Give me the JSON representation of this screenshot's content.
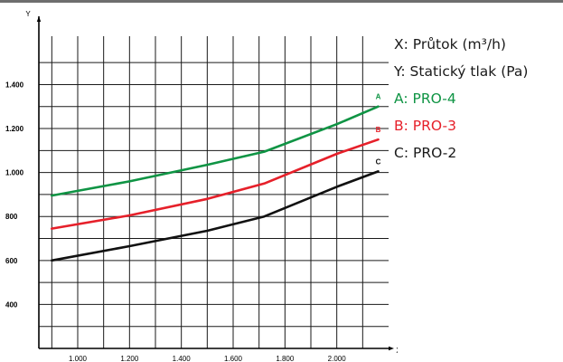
{
  "chart_data": {
    "type": "line",
    "xlabel": "X",
    "ylabel": "Y",
    "xlim": [
      850,
      2200
    ],
    "ylim": [
      200,
      1620
    ],
    "x_ticks": [
      1000,
      1200,
      1400,
      1600,
      1800,
      2000
    ],
    "x_tick_labels": [
      "1.000",
      "1.200",
      "1.400",
      "1.600",
      "1.800",
      "2.000"
    ],
    "y_ticks": [
      400,
      600,
      800,
      1000,
      1200,
      1400
    ],
    "y_tick_labels": [
      "400",
      "600",
      "800",
      "1.000",
      "1.200",
      "1.400"
    ],
    "grid": true,
    "series": [
      {
        "name": "A",
        "color": "#0f9444",
        "x": [
          900,
          1200,
          1500,
          1720,
          2000,
          2160
        ],
        "y": [
          895,
          960,
          1035,
          1095,
          1220,
          1300
        ]
      },
      {
        "name": "B",
        "color": "#e6202a",
        "x": [
          900,
          1200,
          1500,
          1720,
          2000,
          2160
        ],
        "y": [
          745,
          805,
          880,
          950,
          1085,
          1150
        ]
      },
      {
        "name": "C",
        "color": "#111111",
        "x": [
          900,
          1200,
          1500,
          1720,
          2000,
          2160
        ],
        "y": [
          600,
          665,
          735,
          800,
          935,
          1005
        ]
      }
    ]
  },
  "legend": [
    {
      "text": "X: Průtok (m³/h)",
      "color": "#1a1a1a"
    },
    {
      "text": "Y: Statický tlak (Pa)",
      "color": "#1a1a1a"
    },
    {
      "text": "A: PRO-4",
      "color": "#0f9444"
    },
    {
      "text": "B: PRO-3",
      "color": "#e6202a"
    },
    {
      "text": "C: PRO-2",
      "color": "#1a1a1a"
    }
  ]
}
